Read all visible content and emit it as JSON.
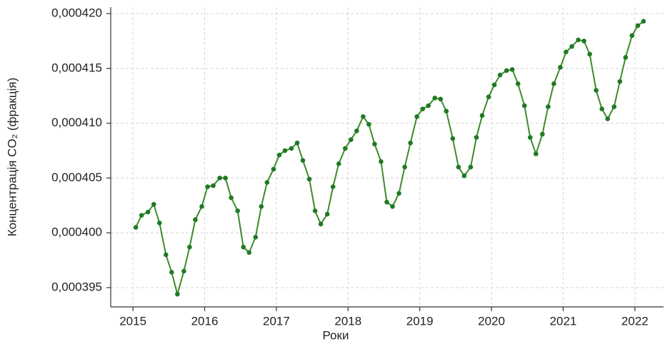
{
  "chart_data": {
    "type": "line",
    "x_label": "Роки",
    "y_label": "Концентрація CO₂ (фракція)",
    "x": [
      2015.04,
      2015.12,
      2015.21,
      2015.29,
      2015.37,
      2015.46,
      2015.54,
      2015.62,
      2015.71,
      2015.79,
      2015.87,
      2015.96,
      2016.04,
      2016.12,
      2016.21,
      2016.29,
      2016.37,
      2016.46,
      2016.54,
      2016.62,
      2016.71,
      2016.79,
      2016.87,
      2016.96,
      2017.04,
      2017.12,
      2017.21,
      2017.29,
      2017.37,
      2017.46,
      2017.54,
      2017.62,
      2017.71,
      2017.79,
      2017.87,
      2017.96,
      2018.04,
      2018.12,
      2018.21,
      2018.29,
      2018.37,
      2018.46,
      2018.54,
      2018.62,
      2018.71,
      2018.79,
      2018.87,
      2018.96,
      2019.04,
      2019.12,
      2019.21,
      2019.29,
      2019.37,
      2019.46,
      2019.54,
      2019.62,
      2019.71,
      2019.79,
      2019.87,
      2019.96,
      2020.04,
      2020.12,
      2020.21,
      2020.29,
      2020.37,
      2020.46,
      2020.54,
      2020.62,
      2020.71,
      2020.79,
      2020.87,
      2020.96,
      2021.04,
      2021.12,
      2021.21,
      2021.29,
      2021.37,
      2021.46,
      2021.54,
      2021.62,
      2021.71,
      2021.79,
      2021.87,
      2021.96,
      2022.04,
      2022.12
    ],
    "series": [
      {
        "color": "#3b8c2a",
        "marker_color": "#1f7a24",
        "values": [
          0.0004005,
          0.0004016,
          0.0004019,
          0.0004026,
          0.0004009,
          0.000398,
          0.0003964,
          0.0003944,
          0.0003965,
          0.0003987,
          0.0004012,
          0.0004024,
          0.0004042,
          0.0004043,
          0.000405,
          0.000405,
          0.0004032,
          0.000402,
          0.0003987,
          0.0003982,
          0.0003996,
          0.0004024,
          0.0004046,
          0.0004058,
          0.0004071,
          0.0004075,
          0.0004077,
          0.0004082,
          0.0004066,
          0.0004049,
          0.000402,
          0.0004008,
          0.0004017,
          0.0004042,
          0.0004063,
          0.0004077,
          0.0004085,
          0.0004093,
          0.0004106,
          0.0004099,
          0.0004081,
          0.0004065,
          0.0004028,
          0.0004024,
          0.0004036,
          0.000406,
          0.0004082,
          0.0004106,
          0.0004113,
          0.0004116,
          0.0004123,
          0.0004122,
          0.0004111,
          0.0004086,
          0.000406,
          0.0004052,
          0.000406,
          0.0004087,
          0.0004107,
          0.0004124,
          0.0004135,
          0.0004144,
          0.0004148,
          0.0004149,
          0.0004136,
          0.0004116,
          0.0004087,
          0.0004072,
          0.000409,
          0.0004115,
          0.0004136,
          0.0004151,
          0.0004165,
          0.000417,
          0.0004176,
          0.0004175,
          0.0004163,
          0.000413,
          0.0004113,
          0.0004104,
          0.0004115,
          0.0004138,
          0.000416,
          0.000418,
          0.0004189,
          0.0004193
        ]
      }
    ],
    "xlim": [
      2014.69,
      2022.4
    ],
    "xticks": [
      2015,
      2016,
      2017,
      2018,
      2019,
      2020,
      2021,
      2022
    ],
    "ylim": [
      0.00039324,
      0.00042059
    ],
    "yticks": [
      {
        "value": 0.000395,
        "label": "0,000395"
      },
      {
        "value": 0.0004,
        "label": "0,000400"
      },
      {
        "value": 0.000405,
        "label": "0,000405"
      },
      {
        "value": 0.00041,
        "label": "0,000410"
      },
      {
        "value": 0.000415,
        "label": "0,000415"
      },
      {
        "value": 0.00042,
        "label": "0,000420"
      }
    ],
    "grid": true
  }
}
